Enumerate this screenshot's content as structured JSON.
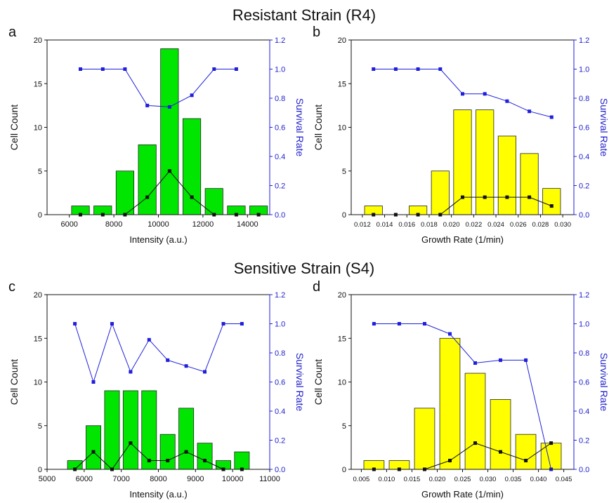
{
  "groups": [
    {
      "title": "Resistant Strain (R4)"
    },
    {
      "title": "Sensitive Strain (S4)"
    }
  ],
  "colors": {
    "green": "#00e600",
    "yellow": "#ffff00",
    "blue": "#1f1fdd",
    "black": "#111111"
  },
  "chart_data": [
    {
      "panel": "a",
      "type": "bar",
      "xlabel": "Intensity (a.u.)",
      "ylabel": "Cell Count",
      "y2label": "Survival Rate",
      "xlim": [
        5000,
        15000
      ],
      "xticks": [
        6000,
        8000,
        10000,
        12000,
        14000
      ],
      "ylim": [
        0,
        20
      ],
      "yticks": [
        0,
        5,
        10,
        15,
        20
      ],
      "y2lim": [
        0,
        1.2
      ],
      "y2ticks": [
        0.0,
        0.2,
        0.4,
        0.6,
        0.8,
        1.0,
        1.2
      ],
      "bar_color": "green",
      "bar_width": 800,
      "bars": {
        "x": [
          6500,
          7500,
          8500,
          9500,
          10500,
          11500,
          12500,
          13500,
          14500
        ],
        "values": [
          1,
          1,
          5,
          8,
          19,
          11,
          3,
          1,
          1
        ]
      },
      "black_line": {
        "x": [
          6500,
          7500,
          8500,
          9500,
          10500,
          11500,
          12500,
          13500,
          14500
        ],
        "values": [
          0,
          0,
          0,
          2,
          5,
          2,
          0,
          0,
          0
        ]
      },
      "blue_line": {
        "x": [
          6500,
          7500,
          8500,
          9500,
          10500,
          11500,
          12500,
          13500
        ],
        "values": [
          1.0,
          1.0,
          1.0,
          0.75,
          0.74,
          0.82,
          1.0,
          1.0
        ]
      }
    },
    {
      "panel": "b",
      "type": "bar",
      "xlabel": "Growth Rate (1/min)",
      "ylabel": "Cell Count",
      "y2label": "Survival Rate",
      "xlim": [
        0.011,
        0.031
      ],
      "xticks": [
        0.012,
        0.014,
        0.016,
        0.018,
        0.02,
        0.022,
        0.024,
        0.026,
        0.028,
        0.03
      ],
      "xtick_labels": [
        "0.012",
        "0.014",
        "0.016",
        "0.018",
        "0.020",
        "0.022",
        "0.024",
        "0.026",
        "0.028",
        "0.030"
      ],
      "ylim": [
        0,
        20
      ],
      "yticks": [
        0,
        5,
        10,
        15,
        20
      ],
      "y2lim": [
        0,
        1.2
      ],
      "y2ticks": [
        0.0,
        0.2,
        0.4,
        0.6,
        0.8,
        1.0,
        1.2
      ],
      "bar_color": "yellow",
      "bar_width": 0.0016,
      "bars": {
        "x": [
          0.013,
          0.015,
          0.017,
          0.019,
          0.021,
          0.023,
          0.025,
          0.027,
          0.029
        ],
        "values": [
          1,
          0,
          1,
          5,
          12,
          12,
          9,
          7,
          3
        ]
      },
      "black_line": {
        "x": [
          0.013,
          0.015,
          0.017,
          0.019,
          0.021,
          0.023,
          0.025,
          0.027,
          0.029
        ],
        "values": [
          0,
          0,
          0,
          0,
          2,
          2,
          2,
          2,
          1
        ]
      },
      "blue_line": {
        "x": [
          0.013,
          0.015,
          0.017,
          0.019,
          0.021,
          0.023,
          0.025,
          0.027,
          0.029
        ],
        "values": [
          1.0,
          1.0,
          1.0,
          1.0,
          0.83,
          0.83,
          0.78,
          0.71,
          0.67
        ]
      }
    },
    {
      "panel": "c",
      "type": "bar",
      "xlabel": "Intensity (a.u.)",
      "ylabel": "Cell Count",
      "y2label": "Survival Rate",
      "xlim": [
        5000,
        11000
      ],
      "xticks": [
        5000,
        6000,
        7000,
        8000,
        9000,
        10000,
        11000
      ],
      "ylim": [
        0,
        20
      ],
      "yticks": [
        0,
        5,
        10,
        15,
        20
      ],
      "y2lim": [
        0,
        1.2
      ],
      "y2ticks": [
        0.0,
        0.2,
        0.4,
        0.6,
        0.8,
        1.0,
        1.2
      ],
      "bar_color": "green",
      "bar_width": 400,
      "bars": {
        "x": [
          5750,
          6250,
          6750,
          7250,
          7750,
          8250,
          8750,
          9250,
          9750,
          10250
        ],
        "values": [
          1,
          5,
          9,
          9,
          9,
          4,
          7,
          3,
          1,
          2
        ]
      },
      "black_line": {
        "x": [
          5750,
          6250,
          6750,
          7250,
          7750,
          8250,
          8750,
          9250,
          9750,
          10250
        ],
        "values": [
          0,
          2,
          0,
          3,
          1,
          1,
          2,
          1,
          0,
          0
        ]
      },
      "blue_line": {
        "x": [
          5750,
          6250,
          6750,
          7250,
          7750,
          8250,
          8750,
          9250,
          9750,
          10250
        ],
        "values": [
          1.0,
          0.6,
          1.0,
          0.67,
          0.89,
          0.75,
          0.71,
          0.67,
          1.0,
          1.0
        ]
      }
    },
    {
      "panel": "d",
      "type": "bar",
      "xlabel": "Growth Rate (1/min)",
      "ylabel": "Cell Count",
      "y2label": "Survival Rate",
      "xlim": [
        0.003,
        0.047
      ],
      "xticks": [
        0.005,
        0.01,
        0.015,
        0.02,
        0.025,
        0.03,
        0.035,
        0.04,
        0.045
      ],
      "xtick_labels": [
        "0.005",
        "0.010",
        "0.015",
        "0.020",
        "0.025",
        "0.030",
        "0.035",
        "0.040",
        "0.045"
      ],
      "ylim": [
        0,
        20
      ],
      "yticks": [
        0,
        5,
        10,
        15,
        20
      ],
      "y2lim": [
        0,
        1.2
      ],
      "y2ticks": [
        0.0,
        0.2,
        0.4,
        0.6,
        0.8,
        1.0,
        1.2
      ],
      "bar_color": "yellow",
      "bar_width": 0.004,
      "bars": {
        "x": [
          0.0075,
          0.0125,
          0.0175,
          0.0225,
          0.0275,
          0.0325,
          0.0375,
          0.0425
        ],
        "values": [
          1,
          1,
          7,
          15,
          11,
          8,
          4,
          3
        ]
      },
      "black_line": {
        "x": [
          0.0075,
          0.0125,
          0.0175,
          0.0225,
          0.0275,
          0.0325,
          0.0375,
          0.0425
        ],
        "values": [
          0,
          0,
          0,
          1,
          3,
          2,
          1,
          3
        ]
      },
      "blue_line": {
        "x": [
          0.0075,
          0.0125,
          0.0175,
          0.0225,
          0.0275,
          0.0325,
          0.0375,
          0.0425
        ],
        "values": [
          1.0,
          1.0,
          1.0,
          0.93,
          0.73,
          0.75,
          0.75,
          0.0
        ]
      }
    }
  ]
}
